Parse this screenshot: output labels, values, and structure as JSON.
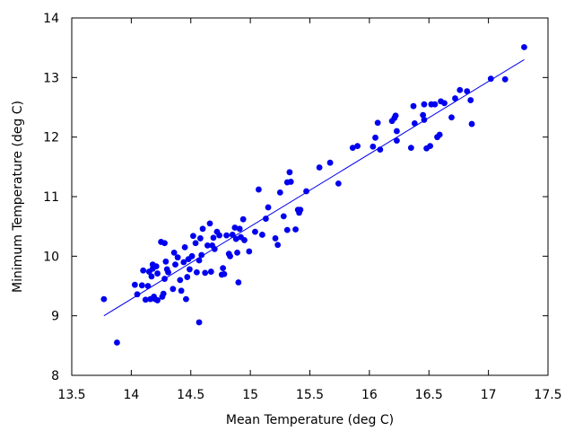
{
  "chart_data": {
    "type": "scatter",
    "title": "",
    "xlabel": "Mean Temperature (deg C)",
    "ylabel": "Minimum Temperature (deg C)",
    "xlim": [
      13.5,
      17.5
    ],
    "ylim": [
      8,
      14
    ],
    "xticks": [
      "13.5",
      "14",
      "14.5",
      "15",
      "15.5",
      "16",
      "16.5",
      "17",
      "17.5"
    ],
    "yticks": [
      "8",
      "9",
      "10",
      "11",
      "12",
      "13",
      "14"
    ],
    "grid": false,
    "legend": "none",
    "point_color": "#0000ee",
    "line_color": "#0000ee",
    "fit_line": {
      "x": [
        13.77,
        17.3
      ],
      "y": [
        9.0,
        13.3
      ]
    },
    "points": [
      [
        13.77,
        9.28
      ],
      [
        13.88,
        8.55
      ],
      [
        14.03,
        9.52
      ],
      [
        14.05,
        9.36
      ],
      [
        14.09,
        9.51
      ],
      [
        14.1,
        9.76
      ],
      [
        14.12,
        9.27
      ],
      [
        14.14,
        9.5
      ],
      [
        14.15,
        9.74
      ],
      [
        14.16,
        9.28
      ],
      [
        14.17,
        9.66
      ],
      [
        14.18,
        9.79
      ],
      [
        14.18,
        9.86
      ],
      [
        14.19,
        9.32
      ],
      [
        14.2,
        9.28
      ],
      [
        14.21,
        9.83
      ],
      [
        14.22,
        9.71
      ],
      [
        14.22,
        9.26
      ],
      [
        14.25,
        10.24
      ],
      [
        14.26,
        9.32
      ],
      [
        14.27,
        9.37
      ],
      [
        14.28,
        10.22
      ],
      [
        14.28,
        9.62
      ],
      [
        14.29,
        9.91
      ],
      [
        14.3,
        9.78
      ],
      [
        14.31,
        9.73
      ],
      [
        14.35,
        9.45
      ],
      [
        14.36,
        10.06
      ],
      [
        14.37,
        9.86
      ],
      [
        14.39,
        9.98
      ],
      [
        14.41,
        9.6
      ],
      [
        14.42,
        9.42
      ],
      [
        14.44,
        9.9
      ],
      [
        14.45,
        10.15
      ],
      [
        14.46,
        9.28
      ],
      [
        14.47,
        9.65
      ],
      [
        14.48,
        9.95
      ],
      [
        14.49,
        9.78
      ],
      [
        14.51,
        10.0
      ],
      [
        14.52,
        10.34
      ],
      [
        14.54,
        10.22
      ],
      [
        14.55,
        9.73
      ],
      [
        14.57,
        8.89
      ],
      [
        14.57,
        9.93
      ],
      [
        14.58,
        10.3
      ],
      [
        14.59,
        10.02
      ],
      [
        14.6,
        10.46
      ],
      [
        14.62,
        9.72
      ],
      [
        14.64,
        10.18
      ],
      [
        14.66,
        10.55
      ],
      [
        14.67,
        9.74
      ],
      [
        14.68,
        10.18
      ],
      [
        14.69,
        10.31
      ],
      [
        14.7,
        10.12
      ],
      [
        14.72,
        10.41
      ],
      [
        14.74,
        10.35
      ],
      [
        14.76,
        9.69
      ],
      [
        14.77,
        9.8
      ],
      [
        14.78,
        9.7
      ],
      [
        14.8,
        10.35
      ],
      [
        14.82,
        10.04
      ],
      [
        14.83,
        10.0
      ],
      [
        14.85,
        10.36
      ],
      [
        14.87,
        10.48
      ],
      [
        14.88,
        10.29
      ],
      [
        14.89,
        10.06
      ],
      [
        14.9,
        9.56
      ],
      [
        14.91,
        10.46
      ],
      [
        14.92,
        10.32
      ],
      [
        14.94,
        10.62
      ],
      [
        14.95,
        10.27
      ],
      [
        14.99,
        10.08
      ],
      [
        15.04,
        10.41
      ],
      [
        15.07,
        11.12
      ],
      [
        15.1,
        10.36
      ],
      [
        15.13,
        10.63
      ],
      [
        15.15,
        10.82
      ],
      [
        15.21,
        10.3
      ],
      [
        15.23,
        10.19
      ],
      [
        15.25,
        11.07
      ],
      [
        15.28,
        10.67
      ],
      [
        15.31,
        11.24
      ],
      [
        15.31,
        10.44
      ],
      [
        15.33,
        11.41
      ],
      [
        15.34,
        11.25
      ],
      [
        15.38,
        10.45
      ],
      [
        15.4,
        10.78
      ],
      [
        15.41,
        10.73
      ],
      [
        15.42,
        10.78
      ],
      [
        15.47,
        11.09
      ],
      [
        15.58,
        11.49
      ],
      [
        15.67,
        11.57
      ],
      [
        15.74,
        11.22
      ],
      [
        15.86,
        11.82
      ],
      [
        15.9,
        11.85
      ],
      [
        16.03,
        11.84
      ],
      [
        16.05,
        11.99
      ],
      [
        16.07,
        12.24
      ],
      [
        16.09,
        11.79
      ],
      [
        16.19,
        12.27
      ],
      [
        16.21,
        12.32
      ],
      [
        16.22,
        12.36
      ],
      [
        16.23,
        11.94
      ],
      [
        16.23,
        12.1
      ],
      [
        16.35,
        11.82
      ],
      [
        16.37,
        12.52
      ],
      [
        16.38,
        12.23
      ],
      [
        16.45,
        12.37
      ],
      [
        16.46,
        12.29
      ],
      [
        16.46,
        12.55
      ],
      [
        16.48,
        11.81
      ],
      [
        16.51,
        11.85
      ],
      [
        16.52,
        12.55
      ],
      [
        16.55,
        12.55
      ],
      [
        16.57,
        12.0
      ],
      [
        16.59,
        12.04
      ],
      [
        16.6,
        12.6
      ],
      [
        16.63,
        12.57
      ],
      [
        16.69,
        12.33
      ],
      [
        16.72,
        12.65
      ],
      [
        16.76,
        12.79
      ],
      [
        16.82,
        12.77
      ],
      [
        16.85,
        12.62
      ],
      [
        16.86,
        12.22
      ],
      [
        17.02,
        12.98
      ],
      [
        17.14,
        12.97
      ],
      [
        17.3,
        13.51
      ]
    ]
  }
}
